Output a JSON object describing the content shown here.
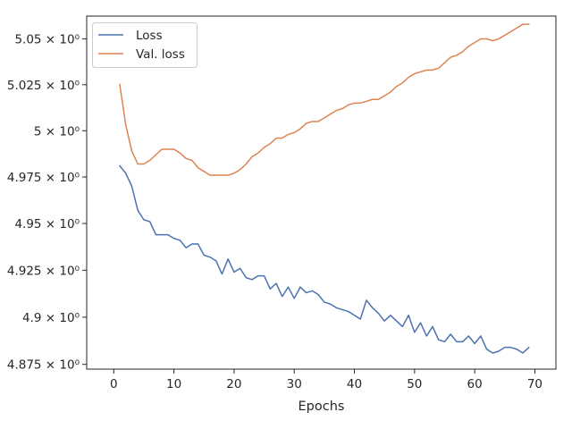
{
  "chart_data": {
    "type": "line",
    "title": "",
    "xlabel": "Epochs",
    "ylabel": "",
    "xlim": [
      -4.5,
      73.5
    ],
    "ylim": [
      4.8725,
      5.0625
    ],
    "y_scale": "log",
    "xticks": [
      0,
      10,
      20,
      30,
      40,
      50,
      60,
      70
    ],
    "xtick_labels": [
      "0",
      "10",
      "20",
      "30",
      "40",
      "50",
      "60",
      "70"
    ],
    "yticks": [
      4.875,
      4.9,
      4.925,
      4.95,
      4.975,
      5.0,
      5.025,
      5.05
    ],
    "ytick_labels": [
      "4.875 × 10⁰",
      "4.9 × 10⁰",
      "4.925 × 10⁰",
      "4.95 × 10⁰",
      "4.975 × 10⁰",
      "5 × 10⁰",
      "5.025 × 10⁰",
      "5.05 × 10⁰"
    ],
    "grid": false,
    "legend_position": "top-left",
    "series": [
      {
        "name": "Loss",
        "color": "#4c72b0",
        "x": [
          1,
          2,
          3,
          4,
          5,
          6,
          7,
          8,
          9,
          10,
          11,
          12,
          13,
          14,
          15,
          16,
          17,
          18,
          19,
          20,
          21,
          22,
          23,
          24,
          25,
          26,
          27,
          28,
          29,
          30,
          31,
          32,
          33,
          34,
          35,
          36,
          37,
          38,
          39,
          40,
          41,
          42,
          43,
          44,
          45,
          46,
          47,
          48,
          49,
          50,
          51,
          52,
          53,
          54,
          55,
          56,
          57,
          58,
          59,
          60,
          61,
          62,
          63,
          64,
          65,
          66,
          67,
          68,
          69
        ],
        "y": [
          4.981,
          4.977,
          4.97,
          4.957,
          4.952,
          4.951,
          4.944,
          4.944,
          4.944,
          4.942,
          4.941,
          4.937,
          4.939,
          4.939,
          4.933,
          4.932,
          4.93,
          4.923,
          4.931,
          4.924,
          4.926,
          4.921,
          4.92,
          4.922,
          4.922,
          4.915,
          4.918,
          4.911,
          4.916,
          4.91,
          4.916,
          4.913,
          4.914,
          4.912,
          4.908,
          4.907,
          4.905,
          4.904,
          4.903,
          4.901,
          4.899,
          4.909,
          4.905,
          4.902,
          4.898,
          4.901,
          4.898,
          4.895,
          4.901,
          4.892,
          4.897,
          4.89,
          4.895,
          4.888,
          4.887,
          4.891,
          4.887,
          4.887,
          4.89,
          4.886,
          4.89,
          4.883,
          4.881,
          4.882,
          4.884,
          4.884,
          4.883,
          4.881,
          4.884
        ]
      },
      {
        "name": "Val. loss",
        "color": "#dd8452",
        "x": [
          1,
          2,
          3,
          4,
          5,
          6,
          7,
          8,
          9,
          10,
          11,
          12,
          13,
          14,
          15,
          16,
          17,
          18,
          19,
          20,
          21,
          22,
          23,
          24,
          25,
          26,
          27,
          28,
          29,
          30,
          31,
          32,
          33,
          34,
          35,
          36,
          37,
          38,
          39,
          40,
          41,
          42,
          43,
          44,
          45,
          46,
          47,
          48,
          49,
          50,
          51,
          52,
          53,
          54,
          55,
          56,
          57,
          58,
          59,
          60,
          61,
          62,
          63,
          64,
          65,
          66,
          67,
          68,
          69
        ],
        "y": [
          5.025,
          5.003,
          4.989,
          4.982,
          4.982,
          4.984,
          4.987,
          4.99,
          4.99,
          4.99,
          4.988,
          4.985,
          4.984,
          4.98,
          4.978,
          4.976,
          4.976,
          4.976,
          4.976,
          4.977,
          4.979,
          4.982,
          4.986,
          4.988,
          4.991,
          4.993,
          4.996,
          4.996,
          4.998,
          4.999,
          5.001,
          5.004,
          5.005,
          5.005,
          5.007,
          5.009,
          5.011,
          5.012,
          5.014,
          5.015,
          5.015,
          5.016,
          5.017,
          5.017,
          5.019,
          5.021,
          5.024,
          5.026,
          5.029,
          5.031,
          5.032,
          5.033,
          5.033,
          5.034,
          5.037,
          5.04,
          5.041,
          5.043,
          5.046,
          5.048,
          5.05,
          5.05,
          5.049,
          5.05,
          5.052,
          5.054,
          5.056,
          5.058,
          5.058
        ]
      }
    ]
  }
}
